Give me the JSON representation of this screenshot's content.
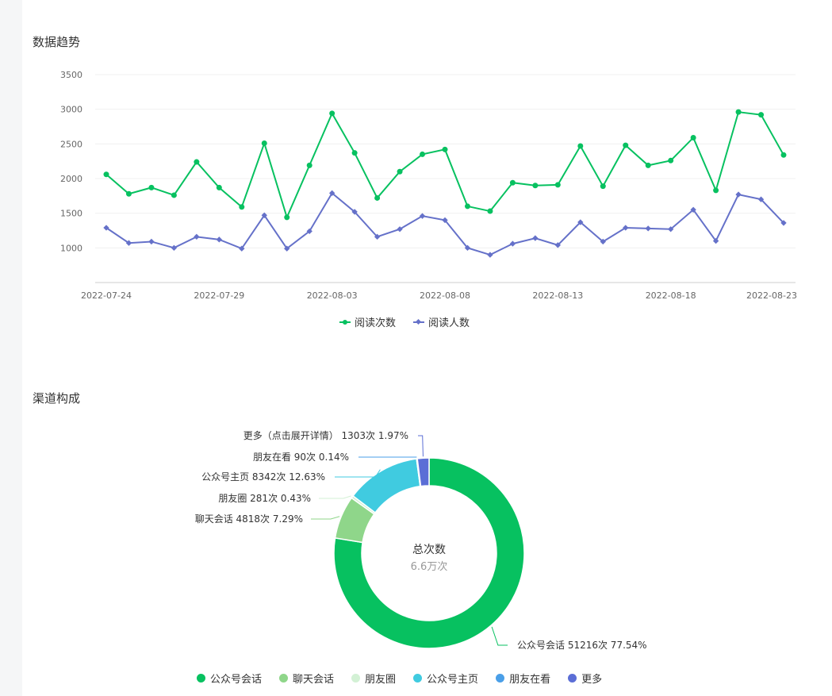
{
  "trend": {
    "title": "数据趋势",
    "legend": [
      {
        "name": "阅读次数",
        "color": "#07c160",
        "marker": "circle"
      },
      {
        "name": "阅读人数",
        "color": "#6571c9",
        "marker": "diamond"
      }
    ]
  },
  "channel": {
    "title": "渠道构成",
    "center_title": "总次数",
    "center_value": "6.6万次"
  },
  "chart_data": [
    {
      "type": "line",
      "title": "数据趋势",
      "ylim": [
        500,
        3500
      ],
      "yticks": [
        1000,
        1500,
        2000,
        2500,
        3000,
        3500
      ],
      "grid": true,
      "legend_position": "bottom-center",
      "x": [
        "2022-07-24",
        "2022-07-25",
        "2022-07-26",
        "2022-07-27",
        "2022-07-28",
        "2022-07-29",
        "2022-07-30",
        "2022-07-31",
        "2022-08-01",
        "2022-08-02",
        "2022-08-03",
        "2022-08-04",
        "2022-08-05",
        "2022-08-06",
        "2022-08-07",
        "2022-08-08",
        "2022-08-09",
        "2022-08-10",
        "2022-08-11",
        "2022-08-12",
        "2022-08-13",
        "2022-08-14",
        "2022-08-15",
        "2022-08-16",
        "2022-08-17",
        "2022-08-18",
        "2022-08-19",
        "2022-08-20",
        "2022-08-21",
        "2022-08-22",
        "2022-08-23"
      ],
      "x_tick_labels": [
        "2022-07-24",
        "2022-07-29",
        "2022-08-03",
        "2022-08-08",
        "2022-08-13",
        "2022-08-18",
        "2022-08-23"
      ],
      "series": [
        {
          "name": "阅读次数",
          "color": "#07c160",
          "values": [
            2060,
            1780,
            1870,
            1760,
            2240,
            1870,
            1590,
            2510,
            1440,
            2190,
            2940,
            2370,
            1720,
            2100,
            2350,
            2420,
            1600,
            1530,
            1940,
            1900,
            1910,
            2470,
            1890,
            2480,
            2190,
            2260,
            2590,
            1830,
            2960,
            2920,
            2340
          ]
        },
        {
          "name": "阅读人数",
          "color": "#6571c9",
          "values": [
            1290,
            1070,
            1090,
            1000,
            1160,
            1120,
            990,
            1470,
            990,
            1240,
            1790,
            1520,
            1160,
            1270,
            1460,
            1400,
            1000,
            900,
            1060,
            1140,
            1040,
            1370,
            1090,
            1290,
            1280,
            1270,
            1550,
            1100,
            1770,
            1700,
            1360
          ]
        }
      ]
    },
    {
      "type": "pie",
      "title": "渠道构成",
      "legend_position": "bottom-center",
      "slices": [
        {
          "name": "公众号会话",
          "value": 51216,
          "percent": "77.54%",
          "color": "#07c160",
          "label": "公众号会话 51216次 77.54%"
        },
        {
          "name": "聊天会话",
          "value": 4818,
          "percent": "7.29%",
          "color": "#8fd68a",
          "label": "聊天会话 4818次 7.29%"
        },
        {
          "name": "朋友圈",
          "value": 281,
          "percent": "0.43%",
          "color": "#d3f1d5",
          "label": "朋友圈 281次 0.43%"
        },
        {
          "name": "公众号主页",
          "value": 8342,
          "percent": "12.63%",
          "color": "#40cbe0",
          "label": "公众号主页 8342次 12.63%"
        },
        {
          "name": "朋友在看",
          "value": 90,
          "percent": "0.14%",
          "color": "#4a9fe8",
          "label": "朋友在看 90次 0.14%"
        },
        {
          "name": "更多",
          "value": 1303,
          "percent": "1.97%",
          "color": "#5b6ed6",
          "label": "更多（点击展开详情） 1303次 1.97%"
        }
      ]
    }
  ]
}
